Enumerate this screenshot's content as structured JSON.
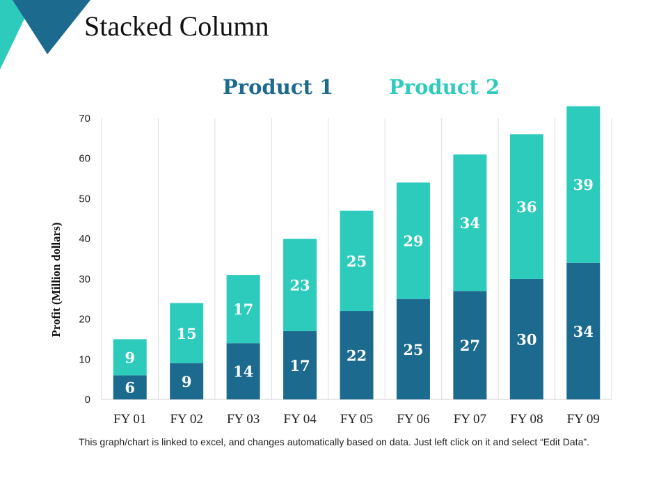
{
  "slide": {
    "title": "Stacked Column",
    "footnote": "This graph/chart is linked to excel, and changes automatically based on data. Just left click on it and select “Edit Data”."
  },
  "colors": {
    "product1": "#1D6A8F",
    "product2": "#2DCBBC"
  },
  "chart_data": {
    "type": "bar",
    "stacked": true,
    "title": "",
    "xlabel": "",
    "ylabel": "Profit  (Million dollars)",
    "categories": [
      "FY 01",
      "FY 02",
      "FY 03",
      "FY 04",
      "FY 05",
      "FY 06",
      "FY 07",
      "FY 08",
      "FY 09"
    ],
    "series": [
      {
        "name": "Product 1",
        "values": [
          6,
          9,
          14,
          17,
          22,
          25,
          27,
          30,
          34
        ]
      },
      {
        "name": "Product 2",
        "values": [
          9,
          15,
          17,
          23,
          25,
          29,
          34,
          36,
          39
        ]
      }
    ],
    "ylim": [
      0,
      70
    ],
    "yticks": [
      0,
      10,
      20,
      30,
      40,
      50,
      60,
      70
    ],
    "grid": "vertical separators",
    "legend_position": "top"
  }
}
